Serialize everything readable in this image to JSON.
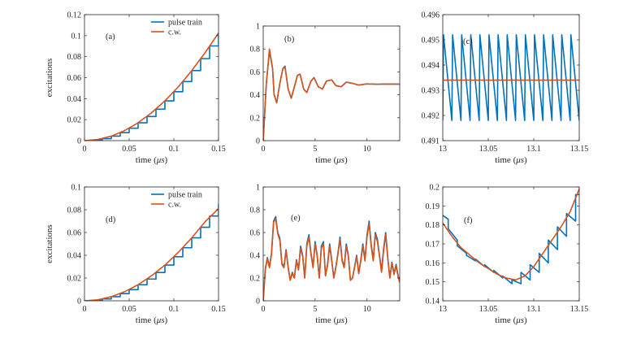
{
  "colors": {
    "pulse_train": "#0072BD",
    "cw": "#D95319",
    "axes": "#262626"
  },
  "legend": {
    "pulse_label": "pulse train",
    "cw_label": "c.w."
  },
  "chart_data": [
    {
      "id": "a",
      "type": "line",
      "panel_label": "(a)",
      "xlabel": "time ($\\mu s$)",
      "ylabel": "excitations",
      "xlim": [
        0,
        0.15
      ],
      "ylim": [
        0,
        0.12
      ],
      "xticks": [
        0,
        0.05,
        0.1,
        0.15
      ],
      "xtick_labels": [
        "0",
        "0.05",
        "0.1",
        "0.15"
      ],
      "yticks": [
        0,
        0.02,
        0.04,
        0.06,
        0.08,
        0.1,
        0.12
      ],
      "ytick_labels": [
        "0",
        "0.02",
        "0.04",
        "0.06",
        "0.08",
        "0.1",
        "0.12"
      ],
      "legend": "top-right",
      "series": [
        {
          "name": "pulse train",
          "x": [
            0,
            0.01,
            0.01,
            0.02,
            0.02,
            0.03,
            0.03,
            0.04,
            0.04,
            0.05,
            0.05,
            0.06,
            0.06,
            0.07,
            0.07,
            0.08,
            0.08,
            0.09,
            0.09,
            0.1,
            0.1,
            0.11,
            0.11,
            0.12,
            0.12,
            0.13,
            0.13,
            0.14,
            0.14,
            0.15,
            0.15
          ],
          "y": [
            0,
            0,
            0.0005,
            0.0005,
            0.0019,
            0.0019,
            0.0043,
            0.0043,
            0.0076,
            0.0076,
            0.0118,
            0.0118,
            0.017,
            0.017,
            0.023,
            0.023,
            0.03,
            0.03,
            0.0379,
            0.0379,
            0.0466,
            0.0466,
            0.0563,
            0.0563,
            0.0667,
            0.0667,
            0.0781,
            0.0781,
            0.0902,
            0.0902,
            0.103
          ]
        },
        {
          "name": "c.w.",
          "x": [
            0,
            0.015,
            0.03,
            0.045,
            0.06,
            0.075,
            0.09,
            0.105,
            0.12,
            0.135,
            0.15
          ],
          "y": [
            0,
            0.0011,
            0.0043,
            0.0096,
            0.017,
            0.0265,
            0.0379,
            0.0513,
            0.0667,
            0.0838,
            0.1025
          ]
        }
      ]
    },
    {
      "id": "b",
      "type": "line",
      "panel_label": "(b)",
      "xlabel": "time ($\\mu s$)",
      "ylabel": "",
      "xlim": [
        0,
        13.15
      ],
      "ylim": [
        0,
        1
      ],
      "xticks": [
        0,
        5,
        10
      ],
      "xtick_labels": [
        "0",
        "5",
        "10"
      ],
      "yticks": [
        0,
        0.2,
        0.4,
        0.6,
        0.8,
        1
      ],
      "ytick_labels": [
        "0",
        "0.2",
        "0.4",
        "0.6",
        "0.8",
        "1"
      ],
      "series": [
        {
          "name": "pulse train",
          "x": [
            0,
            0.3,
            0.6,
            0.9,
            1.05,
            1.3,
            1.6,
            1.9,
            2.1,
            2.4,
            2.7,
            3.0,
            3.3,
            3.55,
            3.9,
            4.2,
            4.6,
            4.9,
            5.3,
            5.7,
            6.1,
            6.6,
            7.0,
            7.5,
            8.0,
            8.6,
            9.2,
            10,
            11,
            12,
            13.15
          ],
          "y": [
            0,
            0.5,
            0.78,
            0.63,
            0.4,
            0.33,
            0.5,
            0.63,
            0.65,
            0.45,
            0.37,
            0.47,
            0.57,
            0.58,
            0.45,
            0.42,
            0.52,
            0.55,
            0.47,
            0.45,
            0.52,
            0.53,
            0.48,
            0.47,
            0.51,
            0.5,
            0.485,
            0.495,
            0.492,
            0.494,
            0.493
          ]
        },
        {
          "name": "c.w.",
          "x": [
            0,
            0.3,
            0.6,
            0.9,
            1.05,
            1.3,
            1.6,
            1.9,
            2.1,
            2.4,
            2.7,
            3.0,
            3.3,
            3.55,
            3.9,
            4.2,
            4.6,
            4.9,
            5.3,
            5.7,
            6.1,
            6.6,
            7.0,
            7.5,
            8.0,
            8.6,
            9.2,
            10,
            11,
            12,
            13.15
          ],
          "y": [
            0,
            0.5,
            0.8,
            0.63,
            0.4,
            0.33,
            0.5,
            0.63,
            0.64,
            0.45,
            0.37,
            0.47,
            0.57,
            0.58,
            0.45,
            0.42,
            0.52,
            0.55,
            0.47,
            0.45,
            0.52,
            0.53,
            0.48,
            0.47,
            0.51,
            0.5,
            0.485,
            0.495,
            0.492,
            0.494,
            0.493
          ]
        }
      ]
    },
    {
      "id": "c",
      "type": "line",
      "panel_label": "(c)",
      "xlabel": "time ($\\mu s$)",
      "ylabel": "",
      "xlim": [
        13,
        13.15
      ],
      "ylim": [
        0.491,
        0.496
      ],
      "xticks": [
        13,
        13.05,
        13.1,
        13.15
      ],
      "xtick_labels": [
        "13",
        "13.05",
        "13.1",
        "13.15"
      ],
      "yticks": [
        0.491,
        0.492,
        0.493,
        0.494,
        0.495,
        0.496
      ],
      "ytick_labels": [
        "0.491",
        "0.492",
        "0.493",
        "0.494",
        "0.495",
        "0.496"
      ],
      "sawtooth": {
        "period": 0.01,
        "high": 0.4952,
        "low": 0.4918,
        "rise_fraction": 0.08
      },
      "series": [
        {
          "name": "pulse train",
          "pattern": "sawtooth"
        },
        {
          "name": "c.w.",
          "x": [
            13,
            13.15
          ],
          "y": [
            0.4934,
            0.4934
          ]
        }
      ]
    },
    {
      "id": "d",
      "type": "line",
      "panel_label": "(d)",
      "xlabel": "time ($\\mu s$)",
      "ylabel": "excitations",
      "xlim": [
        0,
        0.15
      ],
      "ylim": [
        0,
        0.1
      ],
      "xticks": [
        0,
        0.05,
        0.1,
        0.15
      ],
      "xtick_labels": [
        "0",
        "0.05",
        "0.1",
        "0.15"
      ],
      "yticks": [
        0,
        0.02,
        0.04,
        0.06,
        0.08,
        0.1
      ],
      "ytick_labels": [
        "0",
        "0.02",
        "0.04",
        "0.06",
        "0.08",
        "0.1"
      ],
      "legend": "top-right",
      "series": [
        {
          "name": "pulse train",
          "x": [
            0,
            0.01,
            0.01,
            0.02,
            0.02,
            0.03,
            0.03,
            0.04,
            0.04,
            0.05,
            0.05,
            0.06,
            0.06,
            0.07,
            0.07,
            0.08,
            0.08,
            0.09,
            0.09,
            0.1,
            0.1,
            0.11,
            0.11,
            0.12,
            0.12,
            0.13,
            0.13,
            0.14,
            0.14,
            0.15,
            0.15
          ],
          "y": [
            0,
            0,
            0.0004,
            0.0004,
            0.0016,
            0.0016,
            0.0036,
            0.0036,
            0.0063,
            0.0063,
            0.0098,
            0.0098,
            0.0141,
            0.0141,
            0.0191,
            0.0191,
            0.0249,
            0.0249,
            0.0314,
            0.0314,
            0.0387,
            0.0387,
            0.0466,
            0.0466,
            0.0553,
            0.0553,
            0.0646,
            0.0646,
            0.0745,
            0.0745,
            0.085
          ]
        },
        {
          "name": "c.w.",
          "x": [
            0,
            0.015,
            0.03,
            0.045,
            0.06,
            0.075,
            0.09,
            0.105,
            0.12,
            0.135,
            0.15
          ],
          "y": [
            0,
            0.0009,
            0.0036,
            0.008,
            0.0141,
            0.022,
            0.0314,
            0.0426,
            0.0553,
            0.0695,
            0.081
          ]
        }
      ]
    },
    {
      "id": "e",
      "type": "line",
      "panel_label": "(e)",
      "xlabel": "time ($\\mu s$)",
      "ylabel": "",
      "xlim": [
        0,
        13.15
      ],
      "ylim": [
        0,
        1
      ],
      "xticks": [
        0,
        5,
        10
      ],
      "xtick_labels": [
        "0",
        "5",
        "10"
      ],
      "yticks": [
        0,
        0.2,
        0.4,
        0.6,
        0.8,
        1
      ],
      "ytick_labels": [
        "0",
        "0.2",
        "0.4",
        "0.6",
        "0.8",
        "1"
      ],
      "series": [
        {
          "name": "pulse train",
          "x": [
            0,
            0.2,
            0.4,
            0.6,
            0.8,
            1.0,
            1.2,
            1.4,
            1.6,
            1.8,
            2.0,
            2.2,
            2.4,
            2.6,
            2.8,
            3.0,
            3.2,
            3.4,
            3.6,
            3.8,
            4.0,
            4.2,
            4.4,
            4.6,
            4.8,
            5.0,
            5.2,
            5.4,
            5.6,
            5.8,
            6.0,
            6.2,
            6.4,
            6.6,
            6.8,
            7.0,
            7.2,
            7.4,
            7.6,
            7.8,
            8.0,
            8.2,
            8.4,
            8.6,
            8.8,
            9.0,
            9.2,
            9.4,
            9.6,
            9.8,
            10.0,
            10.2,
            10.4,
            10.6,
            10.8,
            11.0,
            11.2,
            11.4,
            11.6,
            11.8,
            12.0,
            12.2,
            12.4,
            12.6,
            12.8,
            13.0,
            13.15
          ],
          "y": [
            0,
            0.28,
            0.38,
            0.3,
            0.42,
            0.7,
            0.74,
            0.6,
            0.55,
            0.33,
            0.3,
            0.45,
            0.3,
            0.18,
            0.25,
            0.2,
            0.36,
            0.28,
            0.48,
            0.4,
            0.2,
            0.5,
            0.58,
            0.42,
            0.3,
            0.52,
            0.4,
            0.2,
            0.48,
            0.52,
            0.22,
            0.32,
            0.5,
            0.36,
            0.2,
            0.3,
            0.42,
            0.56,
            0.36,
            0.3,
            0.5,
            0.4,
            0.18,
            0.2,
            0.3,
            0.4,
            0.24,
            0.36,
            0.5,
            0.36,
            0.58,
            0.7,
            0.5,
            0.36,
            0.6,
            0.54,
            0.4,
            0.26,
            0.46,
            0.6,
            0.38,
            0.2,
            0.34,
            0.24,
            0.32,
            0.22,
            0.17
          ]
        },
        {
          "name": "c.w.",
          "x": [
            0,
            0.2,
            0.4,
            0.6,
            0.8,
            1.0,
            1.2,
            1.4,
            1.6,
            1.8,
            2.0,
            2.2,
            2.4,
            2.6,
            2.8,
            3.0,
            3.2,
            3.4,
            3.6,
            3.8,
            4.0,
            4.2,
            4.4,
            4.6,
            4.8,
            5.0,
            5.2,
            5.4,
            5.6,
            5.8,
            6.0,
            6.2,
            6.4,
            6.6,
            6.8,
            7.0,
            7.2,
            7.4,
            7.6,
            7.8,
            8.0,
            8.2,
            8.4,
            8.6,
            8.8,
            9.0,
            9.2,
            9.4,
            9.6,
            9.8,
            10.0,
            10.2,
            10.4,
            10.6,
            10.8,
            11.0,
            11.2,
            11.4,
            11.6,
            11.8,
            12.0,
            12.2,
            12.4,
            12.6,
            12.8,
            13.0,
            13.15
          ],
          "y": [
            0,
            0.27,
            0.37,
            0.29,
            0.41,
            0.69,
            0.72,
            0.59,
            0.53,
            0.32,
            0.29,
            0.44,
            0.29,
            0.18,
            0.24,
            0.2,
            0.35,
            0.27,
            0.46,
            0.39,
            0.2,
            0.48,
            0.56,
            0.41,
            0.29,
            0.5,
            0.39,
            0.2,
            0.46,
            0.5,
            0.22,
            0.31,
            0.48,
            0.35,
            0.2,
            0.29,
            0.41,
            0.54,
            0.35,
            0.29,
            0.48,
            0.39,
            0.18,
            0.2,
            0.29,
            0.39,
            0.24,
            0.35,
            0.48,
            0.35,
            0.56,
            0.68,
            0.48,
            0.35,
            0.58,
            0.52,
            0.39,
            0.25,
            0.44,
            0.58,
            0.37,
            0.2,
            0.33,
            0.23,
            0.31,
            0.21,
            0.16
          ]
        }
      ]
    },
    {
      "id": "f",
      "type": "line",
      "panel_label": "(f)",
      "xlabel": "time ($\\mu s$)",
      "ylabel": "",
      "xlim": [
        13,
        13.15
      ],
      "ylim": [
        0.14,
        0.2
      ],
      "xticks": [
        13,
        13.05,
        13.1,
        13.15
      ],
      "xtick_labels": [
        "13",
        "13.05",
        "13.1",
        "13.15"
      ],
      "yticks": [
        0.14,
        0.15,
        0.16,
        0.17,
        0.18,
        0.19,
        0.2
      ],
      "ytick_labels": [
        "0.14",
        "0.15",
        "0.16",
        "0.17",
        "0.18",
        "0.19",
        "0.2"
      ],
      "series": [
        {
          "name": "pulse train",
          "x": [
            13,
            13.003,
            13.006,
            13.006,
            13.016,
            13.016,
            13.026,
            13.026,
            13.036,
            13.036,
            13.046,
            13.046,
            13.056,
            13.056,
            13.066,
            13.066,
            13.076,
            13.076,
            13.086,
            13.086,
            13.096,
            13.096,
            13.106,
            13.106,
            13.116,
            13.116,
            13.126,
            13.126,
            13.136,
            13.136,
            13.146,
            13.146,
            13.15
          ],
          "y": [
            0.185,
            0.184,
            0.183,
            0.178,
            0.172,
            0.169,
            0.165,
            0.164,
            0.161,
            0.162,
            0.158,
            0.159,
            0.155,
            0.156,
            0.152,
            0.153,
            0.149,
            0.151,
            0.149,
            0.155,
            0.151,
            0.159,
            0.155,
            0.165,
            0.16,
            0.172,
            0.167,
            0.179,
            0.174,
            0.186,
            0.182,
            0.196,
            0.196
          ]
        },
        {
          "name": "c.w.",
          "x": [
            13,
            13.01,
            13.02,
            13.03,
            13.04,
            13.05,
            13.06,
            13.07,
            13.08,
            13.09,
            13.1,
            13.11,
            13.12,
            13.13,
            13.14,
            13.15
          ],
          "y": [
            0.181,
            0.174,
            0.168,
            0.164,
            0.16,
            0.157,
            0.154,
            0.152,
            0.151,
            0.153,
            0.158,
            0.165,
            0.172,
            0.179,
            0.187,
            0.199
          ]
        }
      ]
    }
  ]
}
